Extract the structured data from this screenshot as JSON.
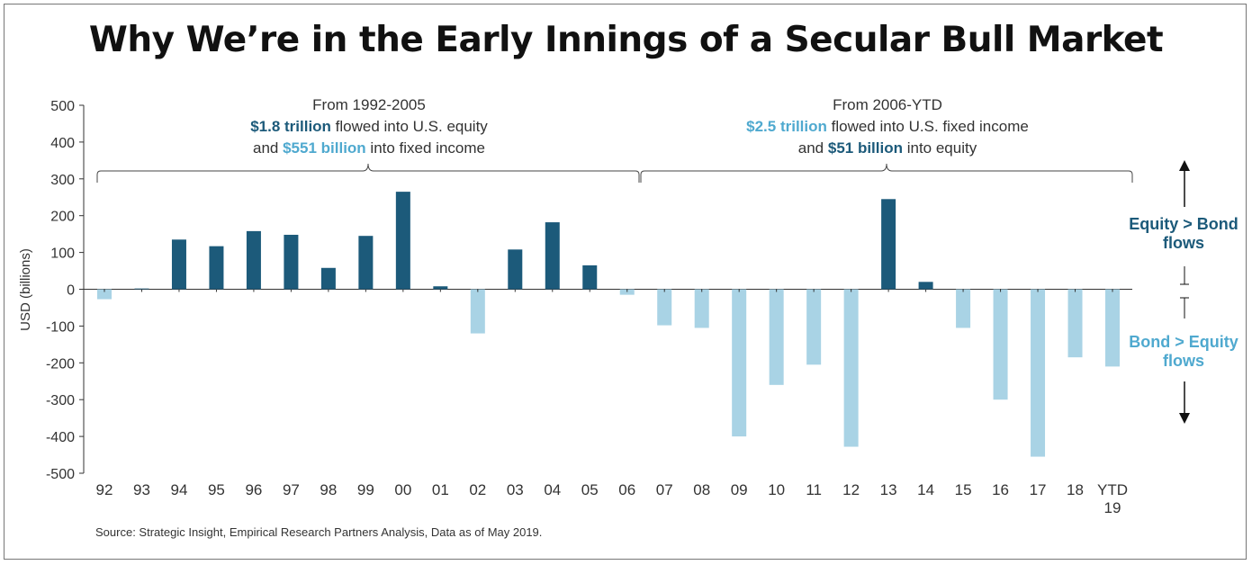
{
  "title": "Why We’re in the Early Innings of a Secular Bull Market",
  "source": "Source: Strategic Insight, Empirical Research Partners Analysis, Data as of May 2019.",
  "annotations": {
    "left": {
      "line1": "From 1992-2005",
      "l2_hl": "$1.8 trillion",
      "l2_rest": " flowed into U.S. equity",
      "l3_pre": "and ",
      "l3_hl": "$551 billion",
      "l3_rest": " into fixed income"
    },
    "right": {
      "line1": "From 2006-YTD",
      "l2_hl": "$2.5 trillion",
      "l2_rest": " flowed into U.S. fixed income",
      "l3_pre": "and ",
      "l3_hl": "$51 billion",
      "l3_rest": " into equity"
    }
  },
  "side_labels": {
    "top": [
      "Equity > Bond",
      "flows"
    ],
    "bottom": [
      "Bond > Equity",
      "flows"
    ]
  },
  "colors": {
    "equity": "#1c5a7a",
    "bond": "#a9d3e5",
    "equity_text": "#1c5a7a",
    "bond_text": "#4fa9cf"
  },
  "chart_data": {
    "type": "bar",
    "title": "Why We’re in the Early Innings of a Secular Bull Market",
    "xlabel": "",
    "ylabel": "USD (billions)",
    "ylim": [
      -500,
      500
    ],
    "yticks": [
      500,
      400,
      300,
      200,
      100,
      0,
      -100,
      -200,
      -300,
      -400,
      -500
    ],
    "ytick_labels": [
      "500",
      "400",
      "300",
      "200",
      "100",
      "0",
      "-100",
      "-200",
      "-300",
      "-400",
      "-500"
    ],
    "categories": [
      "92",
      "93",
      "94",
      "95",
      "96",
      "97",
      "98",
      "99",
      "00",
      "01",
      "02",
      "03",
      "04",
      "05",
      "06",
      "07",
      "08",
      "09",
      "10",
      "11",
      "12",
      "13",
      "14",
      "15",
      "16",
      "17",
      "18",
      "YTD 19"
    ],
    "category_lines": [
      [
        "92"
      ],
      [
        "93"
      ],
      [
        "94"
      ],
      [
        "95"
      ],
      [
        "96"
      ],
      [
        "97"
      ],
      [
        "98"
      ],
      [
        "99"
      ],
      [
        "00"
      ],
      [
        "01"
      ],
      [
        "02"
      ],
      [
        "03"
      ],
      [
        "04"
      ],
      [
        "05"
      ],
      [
        "06"
      ],
      [
        "07"
      ],
      [
        "08"
      ],
      [
        "09"
      ],
      [
        "10"
      ],
      [
        "11"
      ],
      [
        "12"
      ],
      [
        "13"
      ],
      [
        "14"
      ],
      [
        "15"
      ],
      [
        "16"
      ],
      [
        "17"
      ],
      [
        "18"
      ],
      [
        "YTD",
        "19"
      ]
    ],
    "values": [
      -27,
      2,
      135,
      117,
      158,
      148,
      58,
      145,
      265,
      8,
      -120,
      108,
      182,
      65,
      -15,
      -98,
      -105,
      -400,
      -260,
      -205,
      -428,
      245,
      20,
      -105,
      -300,
      -455,
      -185,
      -210
    ],
    "grid": false,
    "legend": "none"
  }
}
